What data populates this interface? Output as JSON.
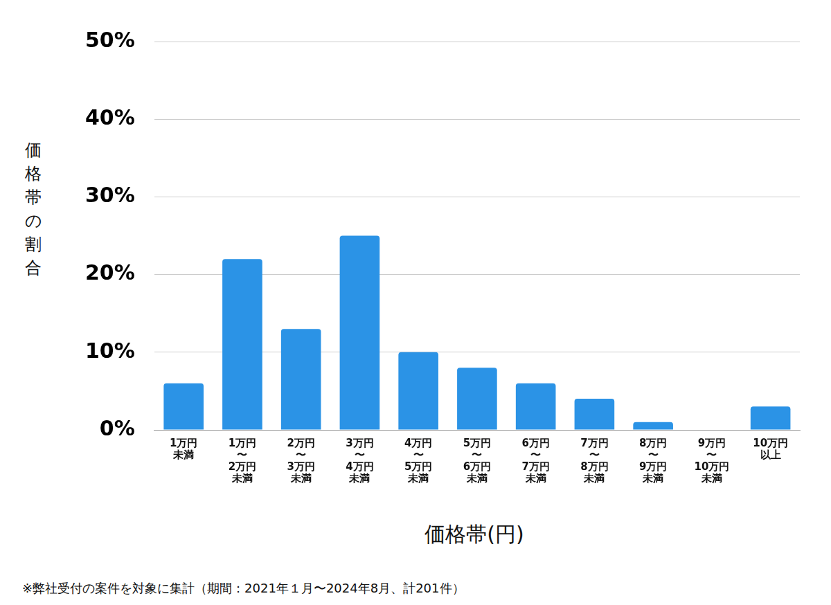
{
  "chart_data": {
    "type": "bar",
    "y_label": "価格帯の割合",
    "x_label": "価格帯(円)",
    "annotations": [
      "※弊社受付の案件を対象に集計（期間：2021年１月〜2024年8月、計201件）"
    ],
    "categories": [
      "1万円\n未満",
      "1万円\n〜\n2万円\n未満",
      "2万円\n〜\n3万円\n未満",
      "3万円\n〜\n4万円\n未満",
      "4万円\n〜\n5万円\n未満",
      "5万円\n〜\n6万円\n未満",
      "6万円\n〜\n7万円\n未満",
      "7万円\n〜\n8万円\n未満",
      "8万円\n〜\n9万円\n未満",
      "9万円\n〜\n10万円\n未満",
      "10万円\n以上"
    ],
    "values": [
      6,
      22,
      13,
      25,
      10,
      8,
      6,
      4,
      1,
      0,
      3
    ],
    "color": "#2b93e6",
    "ylim": [
      0,
      50
    ],
    "yticks": [
      {
        "value": 0,
        "label": "0%"
      },
      {
        "value": 10,
        "label": "10%"
      },
      {
        "value": 20,
        "label": "20%"
      },
      {
        "value": 30,
        "label": "30%"
      },
      {
        "value": 40,
        "label": "40%"
      },
      {
        "value": 50,
        "label": "50%"
      }
    ],
    "grid": true
  }
}
